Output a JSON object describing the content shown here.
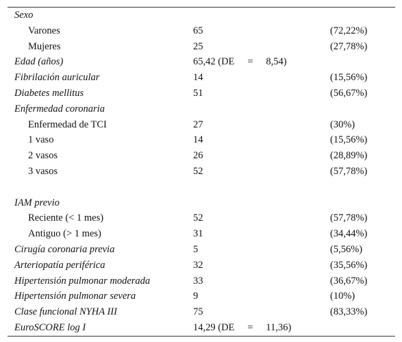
{
  "rows": [
    {
      "label": "Sexo",
      "italic": true,
      "sub": false,
      "value": "",
      "pct": ""
    },
    {
      "label": "Varones",
      "italic": false,
      "sub": true,
      "value": "65",
      "pct": "(72,22%)"
    },
    {
      "label": "Mujeres",
      "italic": false,
      "sub": true,
      "value": "25",
      "pct": "(27,78%)"
    },
    {
      "label": "Edad (años)",
      "italic": true,
      "sub": false,
      "value": "65,42 (DE",
      "eq": "=",
      "de": "8,54)",
      "pct": ""
    },
    {
      "label": "Fibrilación auricular",
      "italic": true,
      "sub": false,
      "value": "14",
      "pct": "(15,56%)"
    },
    {
      "label": "Diabetes mellitus",
      "italic": true,
      "sub": false,
      "value": "51",
      "pct": "(56,67%)"
    },
    {
      "label": "Enfermedad coronaria",
      "italic": true,
      "sub": false,
      "value": "",
      "pct": ""
    },
    {
      "label": "Enfermedad de TCI",
      "italic": false,
      "sub": true,
      "value": "27",
      "pct": "(30%)"
    },
    {
      "label": "1 vaso",
      "italic": false,
      "sub": true,
      "value": "14",
      "pct": "(15,56%)"
    },
    {
      "label": "2 vasos",
      "italic": false,
      "sub": true,
      "value": "26",
      "pct": "(28,89%)"
    },
    {
      "label": "3 vasos",
      "italic": false,
      "sub": true,
      "value": "52",
      "pct": "(57,78%)"
    },
    {
      "label": "",
      "italic": false,
      "sub": false,
      "value": "",
      "pct": "",
      "spacer": true
    },
    {
      "label": "IAM previo",
      "italic": true,
      "sub": false,
      "value": "",
      "pct": ""
    },
    {
      "label": "Reciente (< 1 mes)",
      "italic": false,
      "sub": true,
      "value": "52",
      "pct": "(57,78%)"
    },
    {
      "label": "Antiguo (> 1 mes)",
      "italic": false,
      "sub": true,
      "value": "31",
      "pct": "(34,44%)"
    },
    {
      "label": "Cirugía coronaria previa",
      "italic": true,
      "sub": false,
      "value": "5",
      "pct": "(5,56%)"
    },
    {
      "label": "Arteriopatía periférica",
      "italic": true,
      "sub": false,
      "value": "32",
      "pct": "(35,56%)"
    },
    {
      "label": "Hipertensión pulmonar moderada",
      "italic": true,
      "sub": false,
      "value": "33",
      "pct": "(36,67%)"
    },
    {
      "label": "Hipertensión pulmonar severa",
      "italic": true,
      "sub": false,
      "value": "9",
      "pct": "(10%)"
    },
    {
      "label": "Clase funcional NYHA III",
      "italic": true,
      "sub": false,
      "value": "75",
      "pct": "(83,33%)"
    },
    {
      "label": "EuroSCORE log I",
      "italic": true,
      "sub": false,
      "value": "14,29 (DE",
      "eq": "=",
      "de": "11,36)",
      "pct": ""
    }
  ]
}
